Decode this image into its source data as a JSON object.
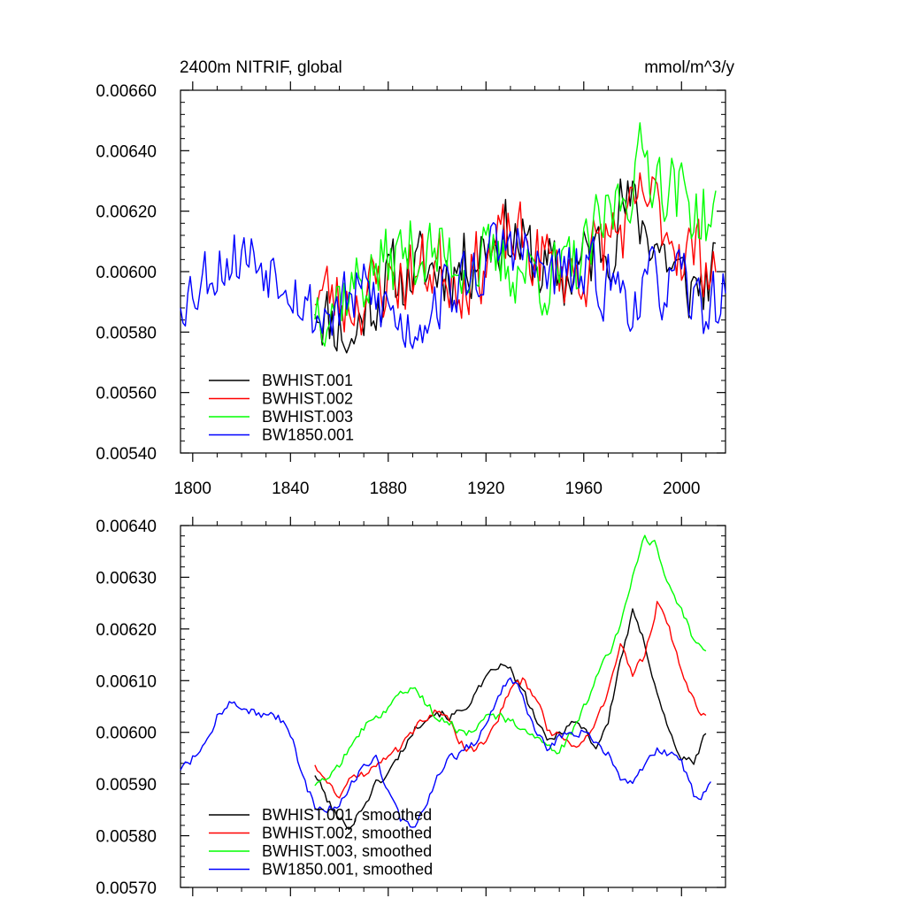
{
  "chart_data": [
    {
      "type": "line",
      "title": "2400m NITRIF, global",
      "units": "mmol/m^3/y",
      "xlim": [
        1795,
        2018
      ],
      "ylim": [
        0.0054,
        0.0066
      ],
      "yticks": [
        "0.00540",
        "0.00560",
        "0.00580",
        "0.00600",
        "0.00620",
        "0.00640",
        "0.00660"
      ],
      "xticks": [
        "1800",
        "1840",
        "1880",
        "1920",
        "1960",
        "2000"
      ],
      "grid": false,
      "legend_position": "bottom-left",
      "series": [
        {
          "name": "BWHIST.001",
          "color": "#000000",
          "x_start": 1850,
          "x_end": 2014,
          "anchors": [
            [
              1850,
              0.00592
            ],
            [
              1855,
              0.00585
            ],
            [
              1860,
              0.00583
            ],
            [
              1865,
              0.00575
            ],
            [
              1870,
              0.00588
            ],
            [
              1880,
              0.00596
            ],
            [
              1890,
              0.006
            ],
            [
              1900,
              0.00601
            ],
            [
              1910,
              0.00602
            ],
            [
              1920,
              0.0061
            ],
            [
              1925,
              0.00612
            ],
            [
              1930,
              0.00613
            ],
            [
              1940,
              0.00603
            ],
            [
              1950,
              0.00597
            ],
            [
              1960,
              0.00603
            ],
            [
              1970,
              0.0061
            ],
            [
              1975,
              0.00622
            ],
            [
              1980,
              0.0062
            ],
            [
              1990,
              0.0061
            ],
            [
              2000,
              0.00596
            ],
            [
              2005,
              0.00595
            ],
            [
              2014,
              0.00598
            ]
          ],
          "noise": 0.00018,
          "seed": 11
        },
        {
          "name": "BWHIST.002",
          "color": "#ff0000",
          "x_start": 1850,
          "x_end": 2014,
          "anchors": [
            [
              1850,
              0.00595
            ],
            [
              1860,
              0.0059
            ],
            [
              1870,
              0.00592
            ],
            [
              1880,
              0.00597
            ],
            [
              1890,
              0.00599
            ],
            [
              1900,
              0.00603
            ],
            [
              1910,
              0.00598
            ],
            [
              1920,
              0.00604
            ],
            [
              1930,
              0.00611
            ],
            [
              1940,
              0.00606
            ],
            [
              1950,
              0.006
            ],
            [
              1960,
              0.006
            ],
            [
              1970,
              0.00612
            ],
            [
              1980,
              0.00615
            ],
            [
              1985,
              0.00625
            ],
            [
              1990,
              0.0062
            ],
            [
              2000,
              0.00608
            ],
            [
              2014,
              0.00603
            ]
          ],
          "noise": 0.00018,
          "seed": 23
        },
        {
          "name": "BWHIST.003",
          "color": "#00ff00",
          "x_start": 1850,
          "x_end": 2014,
          "anchors": [
            [
              1850,
              0.0059
            ],
            [
              1860,
              0.00592
            ],
            [
              1870,
              0.00598
            ],
            [
              1880,
              0.00603
            ],
            [
              1890,
              0.00608
            ],
            [
              1900,
              0.00605
            ],
            [
              1910,
              0.00604
            ],
            [
              1920,
              0.00602
            ],
            [
              1930,
              0.00602
            ],
            [
              1940,
              0.006
            ],
            [
              1950,
              0.00597
            ],
            [
              1960,
              0.00604
            ],
            [
              1970,
              0.00618
            ],
            [
              1975,
              0.00625
            ],
            [
              1985,
              0.00638
            ],
            [
              1990,
              0.00633
            ],
            [
              2000,
              0.00625
            ],
            [
              2014,
              0.00615
            ]
          ],
          "noise": 0.00018,
          "seed": 37
        },
        {
          "name": "BW1850.001",
          "color": "#0000ff",
          "x_start": 1795,
          "x_end": 2018,
          "anchors": [
            [
              1795,
              0.00593
            ],
            [
              1800,
              0.00595
            ],
            [
              1810,
              0.00603
            ],
            [
              1820,
              0.00606
            ],
            [
              1830,
              0.00603
            ],
            [
              1840,
              0.006
            ],
            [
              1845,
              0.0059
            ],
            [
              1850,
              0.00585
            ],
            [
              1860,
              0.00588
            ],
            [
              1870,
              0.00593
            ],
            [
              1880,
              0.00588
            ],
            [
              1885,
              0.00582
            ],
            [
              1890,
              0.00582
            ],
            [
              1900,
              0.00592
            ],
            [
              1910,
              0.00595
            ],
            [
              1920,
              0.00603
            ],
            [
              1930,
              0.0061
            ],
            [
              1935,
              0.00607
            ],
            [
              1940,
              0.006
            ],
            [
              1950,
              0.00599
            ],
            [
              1960,
              0.00598
            ],
            [
              1970,
              0.00597
            ],
            [
              1980,
              0.00591
            ],
            [
              1990,
              0.00596
            ],
            [
              2000,
              0.00595
            ],
            [
              2005,
              0.00589
            ],
            [
              2012,
              0.00589
            ],
            [
              2018,
              0.00592
            ]
          ],
          "noise": 0.00016,
          "seed": 53
        }
      ]
    },
    {
      "type": "line",
      "title": "",
      "units": "",
      "xlim": [
        1795,
        2018
      ],
      "ylim": [
        0.0057,
        0.0064
      ],
      "yticks": [
        "0.00570",
        "0.00580",
        "0.00590",
        "0.00600",
        "0.00610",
        "0.00620",
        "0.00630",
        "0.00640"
      ],
      "xticks": [],
      "grid": false,
      "legend_position": "bottom-left",
      "series": [
        {
          "name": "BWHIST.001, smoothed",
          "color": "#000000",
          "x_start": 1850,
          "x_end": 2010,
          "anchors": [
            [
              1850,
              0.00592
            ],
            [
              1855,
              0.00587
            ],
            [
              1860,
              0.00583
            ],
            [
              1865,
              0.00582
            ],
            [
              1870,
              0.00586
            ],
            [
              1875,
              0.0059
            ],
            [
              1880,
              0.00592
            ],
            [
              1885,
              0.00596
            ],
            [
              1890,
              0.006
            ],
            [
              1895,
              0.00603
            ],
            [
              1900,
              0.00604
            ],
            [
              1905,
              0.00603
            ],
            [
              1910,
              0.00604
            ],
            [
              1915,
              0.00607
            ],
            [
              1920,
              0.0061
            ],
            [
              1925,
              0.00613
            ],
            [
              1930,
              0.00612
            ],
            [
              1935,
              0.00608
            ],
            [
              1940,
              0.00603
            ],
            [
              1945,
              0.00598
            ],
            [
              1950,
              0.006
            ],
            [
              1955,
              0.00602
            ],
            [
              1960,
              0.00601
            ],
            [
              1965,
              0.00597
            ],
            [
              1970,
              0.00602
            ],
            [
              1975,
              0.00614
            ],
            [
              1980,
              0.00623
            ],
            [
              1985,
              0.00617
            ],
            [
              1990,
              0.00608
            ],
            [
              1995,
              0.006
            ],
            [
              2000,
              0.00595
            ],
            [
              2005,
              0.00594
            ],
            [
              2010,
              0.006
            ]
          ],
          "noise": 1.2e-05,
          "seed": 101
        },
        {
          "name": "BWHIST.002, smoothed",
          "color": "#ff0000",
          "x_start": 1850,
          "x_end": 2010,
          "anchors": [
            [
              1850,
              0.00594
            ],
            [
              1855,
              0.0059
            ],
            [
              1860,
              0.00588
            ],
            [
              1865,
              0.00591
            ],
            [
              1870,
              0.00592
            ],
            [
              1875,
              0.00594
            ],
            [
              1880,
              0.00596
            ],
            [
              1885,
              0.00597
            ],
            [
              1890,
              0.006
            ],
            [
              1895,
              0.00603
            ],
            [
              1900,
              0.00604
            ],
            [
              1905,
              0.00602
            ],
            [
              1910,
              0.00598
            ],
            [
              1915,
              0.00596
            ],
            [
              1920,
              0.00599
            ],
            [
              1925,
              0.00603
            ],
            [
              1930,
              0.00608
            ],
            [
              1935,
              0.0061
            ],
            [
              1940,
              0.00607
            ],
            [
              1945,
              0.00601
            ],
            [
              1950,
              0.00599
            ],
            [
              1955,
              0.00598
            ],
            [
              1960,
              0.00598
            ],
            [
              1965,
              0.00602
            ],
            [
              1970,
              0.00608
            ],
            [
              1975,
              0.00617
            ],
            [
              1980,
              0.00611
            ],
            [
              1985,
              0.00615
            ],
            [
              1990,
              0.00625
            ],
            [
              1995,
              0.0062
            ],
            [
              2000,
              0.00612
            ],
            [
              2005,
              0.00606
            ],
            [
              2010,
              0.00603
            ]
          ],
          "noise": 1.2e-05,
          "seed": 131
        },
        {
          "name": "BWHIST.003, smoothed",
          "color": "#00ff00",
          "x_start": 1850,
          "x_end": 2010,
          "anchors": [
            [
              1850,
              0.0059
            ],
            [
              1855,
              0.00592
            ],
            [
              1860,
              0.00594
            ],
            [
              1865,
              0.00597
            ],
            [
              1870,
              0.00601
            ],
            [
              1875,
              0.00603
            ],
            [
              1880,
              0.00605
            ],
            [
              1885,
              0.00608
            ],
            [
              1890,
              0.00609
            ],
            [
              1895,
              0.00606
            ],
            [
              1900,
              0.00603
            ],
            [
              1905,
              0.00602
            ],
            [
              1910,
              0.006
            ],
            [
              1915,
              0.006
            ],
            [
              1920,
              0.00603
            ],
            [
              1925,
              0.00603
            ],
            [
              1930,
              0.00602
            ],
            [
              1935,
              0.00601
            ],
            [
              1940,
              0.00599
            ],
            [
              1945,
              0.00597
            ],
            [
              1950,
              0.00596
            ],
            [
              1955,
              0.006
            ],
            [
              1960,
              0.00605
            ],
            [
              1965,
              0.0061
            ],
            [
              1970,
              0.00615
            ],
            [
              1975,
              0.0062
            ],
            [
              1980,
              0.0063
            ],
            [
              1985,
              0.00638
            ],
            [
              1990,
              0.00636
            ],
            [
              1995,
              0.00628
            ],
            [
              2000,
              0.00624
            ],
            [
              2005,
              0.00618
            ],
            [
              2010,
              0.00615
            ]
          ],
          "noise": 1.2e-05,
          "seed": 157
        },
        {
          "name": "BW1850.001, smoothed",
          "color": "#0000ff",
          "x_start": 1795,
          "x_end": 2012,
          "anchors": [
            [
              1795,
              0.00593
            ],
            [
              1800,
              0.00595
            ],
            [
              1805,
              0.00597
            ],
            [
              1810,
              0.00603
            ],
            [
              1815,
              0.00606
            ],
            [
              1820,
              0.00605
            ],
            [
              1825,
              0.00604
            ],
            [
              1830,
              0.00603
            ],
            [
              1835,
              0.00603
            ],
            [
              1840,
              0.006
            ],
            [
              1845,
              0.00591
            ],
            [
              1850,
              0.00586
            ],
            [
              1855,
              0.00585
            ],
            [
              1860,
              0.00586
            ],
            [
              1865,
              0.0059
            ],
            [
              1870,
              0.00594
            ],
            [
              1875,
              0.00595
            ],
            [
              1880,
              0.00588
            ],
            [
              1885,
              0.00583
            ],
            [
              1890,
              0.00582
            ],
            [
              1895,
              0.00585
            ],
            [
              1900,
              0.00591
            ],
            [
              1905,
              0.00595
            ],
            [
              1910,
              0.00596
            ],
            [
              1915,
              0.00598
            ],
            [
              1920,
              0.00602
            ],
            [
              1925,
              0.00607
            ],
            [
              1930,
              0.00611
            ],
            [
              1935,
              0.00607
            ],
            [
              1940,
              0.006
            ],
            [
              1945,
              0.00597
            ],
            [
              1950,
              0.00599
            ],
            [
              1955,
              0.006
            ],
            [
              1960,
              0.006
            ],
            [
              1965,
              0.00598
            ],
            [
              1970,
              0.00596
            ],
            [
              1975,
              0.00591
            ],
            [
              1980,
              0.0059
            ],
            [
              1985,
              0.00594
            ],
            [
              1990,
              0.00597
            ],
            [
              1995,
              0.00596
            ],
            [
              2000,
              0.00594
            ],
            [
              2005,
              0.00588
            ],
            [
              2010,
              0.00588
            ],
            [
              2012,
              0.00591
            ]
          ],
          "noise": 1.2e-05,
          "seed": 181
        }
      ]
    }
  ]
}
